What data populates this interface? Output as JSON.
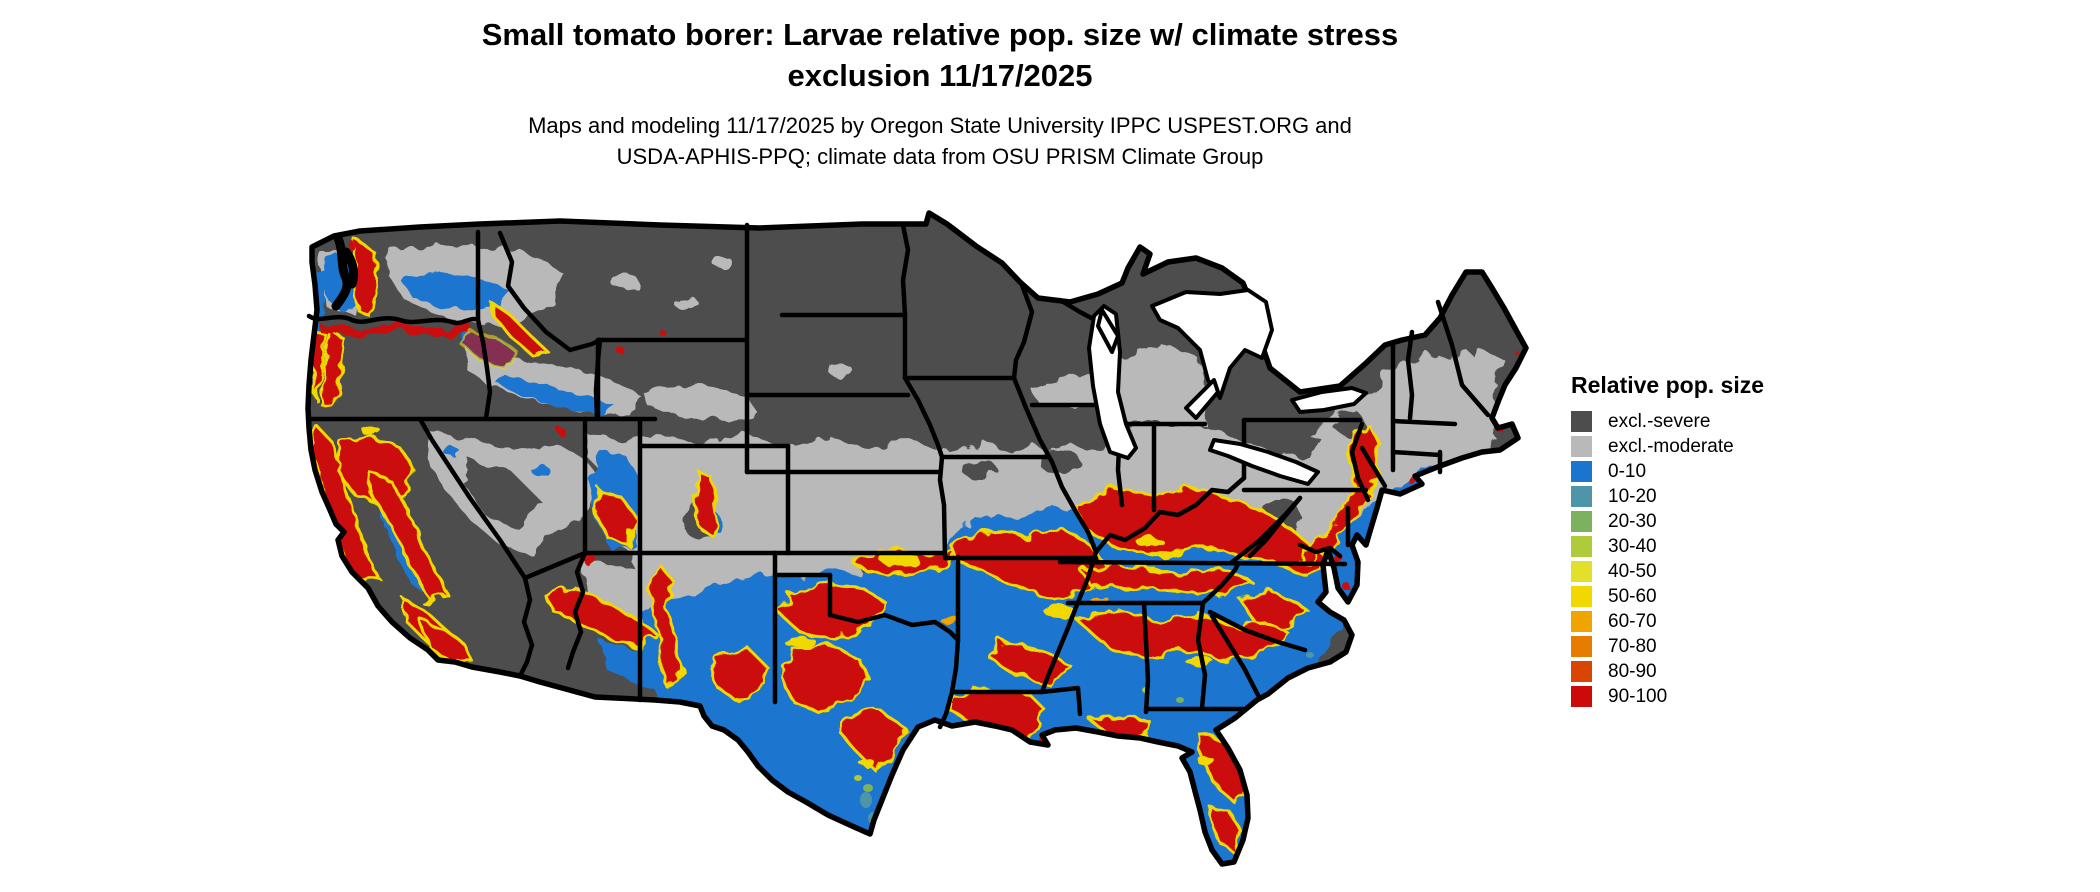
{
  "header": {
    "title_line1": "Small tomato borer: Larvae relative pop. size w/ climate stress",
    "title_line2": "exclusion 11/17/2025",
    "subtitle_line1": "Maps and modeling 11/17/2025 by Oregon State University IPPC USPEST.ORG and",
    "subtitle_line2": "USDA-APHIS-PPQ; climate data from OSU PRISM Climate Group"
  },
  "legend": {
    "title": "Relative pop. size",
    "items": [
      {
        "label": "excl.-severe",
        "color": "#4D4D4D"
      },
      {
        "label": "excl.-moderate",
        "color": "#B9B9B9"
      },
      {
        "label": "0-10",
        "color": "#1B74CE"
      },
      {
        "label": "10-20",
        "color": "#4E95A9"
      },
      {
        "label": "20-30",
        "color": "#7CB25E"
      },
      {
        "label": "30-40",
        "color": "#AFCB3C"
      },
      {
        "label": "40-50",
        "color": "#E2E02A"
      },
      {
        "label": "50-60",
        "color": "#F0D800"
      },
      {
        "label": "60-70",
        "color": "#F0A400"
      },
      {
        "label": "70-80",
        "color": "#E67D00"
      },
      {
        "label": "80-90",
        "color": "#D94602"
      },
      {
        "label": "90-100",
        "color": "#CC0A0A"
      }
    ]
  },
  "map": {
    "description": "Contiguous United States raster map of larvae relative population size with climate stress exclusion",
    "border_color": "#000000",
    "background_color": "#FFFFFF",
    "lake_color": "#FFFFFF"
  },
  "palette": {
    "severe": "#4D4D4D",
    "moderate": "#B9B9B9",
    "b0_10": "#1B74CE",
    "b10_20": "#4E95A9",
    "b20_30": "#7CB25E",
    "b30_40": "#AFCB3C",
    "b40_50": "#E2E02A",
    "b50_60": "#F0D800",
    "b60_70": "#F0A400",
    "b70_80": "#E67D00",
    "b80_90": "#D94602",
    "b90_100": "#CC0A0A",
    "border": "#000000",
    "lake": "#FFFFFF"
  }
}
